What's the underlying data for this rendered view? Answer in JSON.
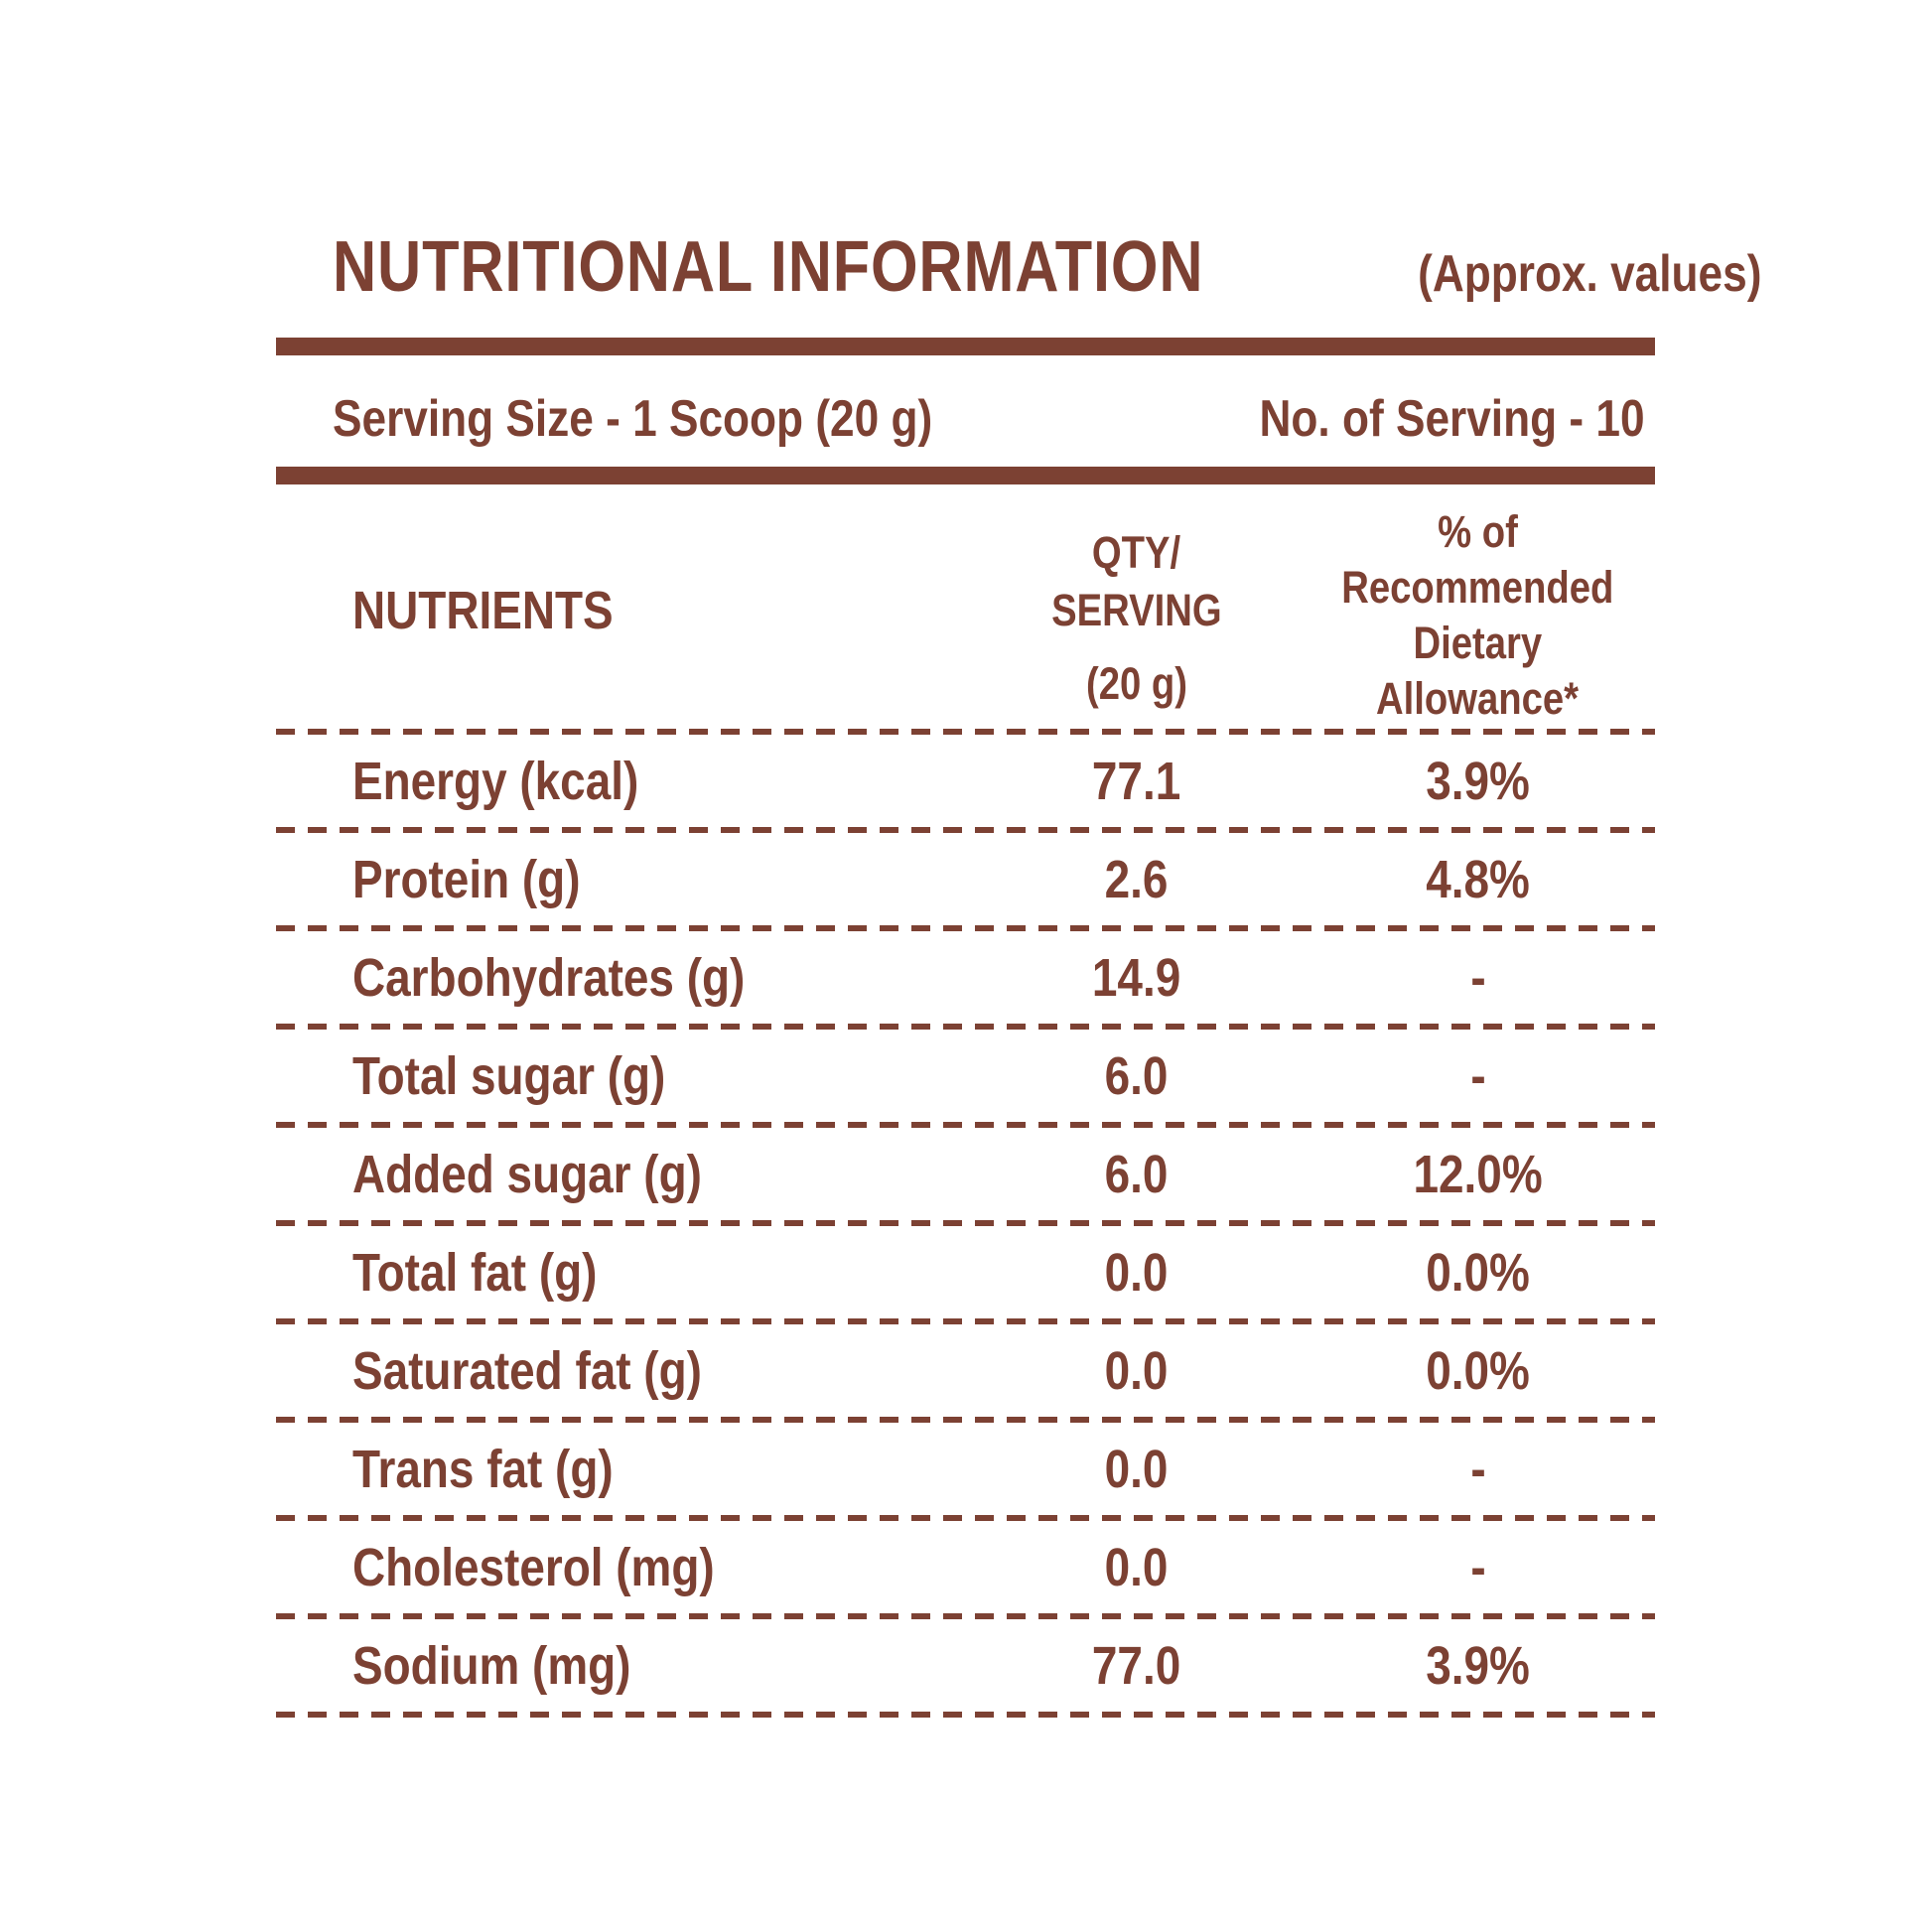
{
  "colors": {
    "accent": "#7c4133",
    "background": "#ffffff"
  },
  "header": {
    "title": "NUTRITIONAL INFORMATION",
    "note": "(Approx. values)"
  },
  "serving": {
    "size": "Serving Size - 1 Scoop (20 g)",
    "count": "No. of Serving - 10"
  },
  "table": {
    "nutrients_header": "NUTRIENTS",
    "qty_header_lines": [
      "QTY/",
      "SERVING",
      "(20 g)"
    ],
    "rda_header_lines": [
      "% of",
      "Recommended",
      "Dietary",
      "Allowance*"
    ],
    "rows": [
      {
        "nutrient": "Energy (kcal)",
        "qty": "77.1",
        "rda": "3.9%"
      },
      {
        "nutrient": "Protein (g)",
        "qty": "2.6",
        "rda": "4.8%"
      },
      {
        "nutrient": "Carbohydrates (g)",
        "qty": "14.9",
        "rda": "-"
      },
      {
        "nutrient": "Total sugar (g)",
        "qty": "6.0",
        "rda": "-"
      },
      {
        "nutrient": "Added sugar (g)",
        "qty": "6.0",
        "rda": "12.0%"
      },
      {
        "nutrient": "Total fat (g)",
        "qty": "0.0",
        "rda": "0.0%"
      },
      {
        "nutrient": "Saturated fat (g)",
        "qty": "0.0",
        "rda": "0.0%"
      },
      {
        "nutrient": "Trans fat (g)",
        "qty": "0.0",
        "rda": "-"
      },
      {
        "nutrient": "Cholesterol (mg)",
        "qty": "0.0",
        "rda": "-"
      },
      {
        "nutrient": "Sodium (mg)",
        "qty": "77.0",
        "rda": "3.9%"
      }
    ]
  }
}
